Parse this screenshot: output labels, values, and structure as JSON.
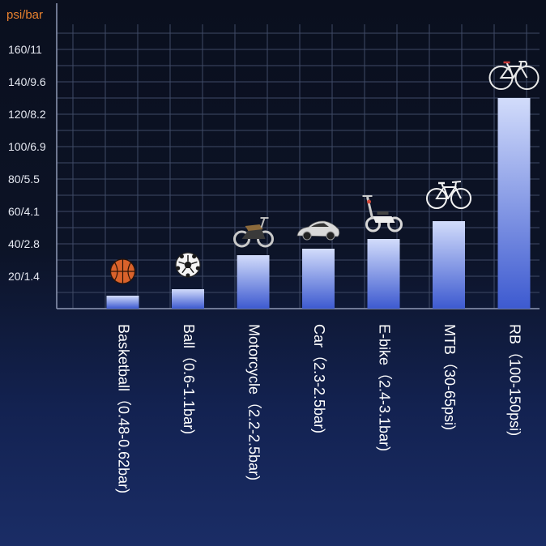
{
  "chart_data": {
    "type": "bar",
    "unit_label": "psi/bar",
    "categories": [
      "Basketball（0.48-0.62bar)",
      "Ball（0.6-1.1bar)",
      "Motorcycle（2.2-2.5bar)",
      "Car（2.3-2.5bar)",
      "E-bike（2.4-3.1bar)",
      "MTB（30-65psi)",
      "RB（100-150psi)"
    ],
    "values": [
      8,
      12,
      33,
      37,
      43,
      54,
      130
    ],
    "icons": [
      "basketball-icon",
      "soccer-ball-icon",
      "motorcycle-icon",
      "car-icon",
      "e-scooter-icon",
      "mountain-bike-icon",
      "road-bike-icon"
    ],
    "yticks": [
      "20/1.4",
      "40/2.8",
      "60/4.1",
      "80/5.5",
      "100/6.9",
      "120/8.2",
      "140/9.6",
      "160/11"
    ],
    "ytick_values": [
      20,
      40,
      60,
      80,
      100,
      120,
      140,
      160
    ],
    "ylim": [
      0,
      175
    ],
    "grid": true,
    "colors": {
      "bar_top": "#d2dcfb",
      "bar_bottom": "#3d5ad0",
      "unit_label": "#e8812e",
      "grid": "#3f4a66"
    }
  }
}
